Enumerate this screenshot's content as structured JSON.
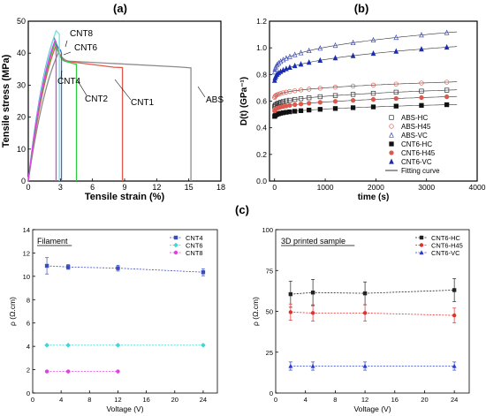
{
  "panel_labels": {
    "a": "(a)",
    "b": "(b)",
    "c": "(c)"
  },
  "chart_data": [
    {
      "id": "a",
      "type": "line",
      "xlabel": "Tensile strain (%)",
      "ylabel": "Tensile stress (MPa)",
      "xlim": [
        0,
        18
      ],
      "ylim": [
        0,
        50
      ],
      "xticks": [
        0,
        3,
        6,
        9,
        12,
        15,
        18
      ],
      "yticks": [
        0,
        10,
        20,
        30,
        40,
        50
      ],
      "series": [
        {
          "name": "ABS",
          "color": "#8c8c8c",
          "peak": [
            2.8,
            40
          ],
          "plateau": [
            3.8,
            37.5
          ],
          "plateau_end": [
            14,
            35.7
          ],
          "end": [
            15.2,
            35.4
          ],
          "drop": true
        },
        {
          "name": "CNT1",
          "color": "#e0584c",
          "peak": [
            2.6,
            42.5
          ],
          "plateau": [
            3.5,
            37.5
          ],
          "plateau_end": [
            8,
            35.6
          ],
          "end": [
            8.8,
            35.5
          ],
          "drop": true
        },
        {
          "name": "CNT2",
          "color": "#2ecc40",
          "peak": [
            2.5,
            43
          ],
          "plateau": [
            3.4,
            37.5
          ],
          "end": [
            4.5,
            36.5
          ],
          "drop": true
        },
        {
          "name": "CNT4",
          "color": "#2a6fdb",
          "peak": [
            2.4,
            45
          ],
          "plateau": [
            3.0,
            41
          ],
          "end": [
            3.1,
            40
          ],
          "drop": true
        },
        {
          "name": "CNT6",
          "color": "#7be0e0",
          "peak": [
            2.6,
            47
          ],
          "end": [
            2.9,
            46
          ],
          "drop": true
        },
        {
          "name": "CNT8",
          "color": "#e040e0",
          "peak": [
            2.5,
            44
          ],
          "end": [
            2.6,
            43.5
          ],
          "drop": true
        }
      ],
      "annotations": [
        "CNT8",
        "CNT6",
        "CNT4",
        "CNT2",
        "CNT1",
        "ABS"
      ]
    },
    {
      "id": "b",
      "type": "scatter",
      "xlabel": "time (s)",
      "ylabel": "D(t) (GPa⁻¹)",
      "xlim": [
        -100,
        4000
      ],
      "ylim": [
        0,
        1.2
      ],
      "xticks": [
        0,
        1000,
        2000,
        3000,
        4000
      ],
      "yticks": [
        0.0,
        0.2,
        0.4,
        0.6,
        0.8,
        1.0,
        1.2
      ],
      "legend": "bottom-right",
      "series": [
        {
          "name": "ABS-HC",
          "color": "#333333",
          "marker": "open-square",
          "d0": 0.55,
          "d_end": 0.685
        },
        {
          "name": "ABS-H45",
          "color": "#e0584c",
          "marker": "open-circle",
          "d0": 0.62,
          "d_end": 0.745
        },
        {
          "name": "ABS-VC",
          "color": "#3a4cc0",
          "marker": "open-triangle",
          "d0": 0.8,
          "d_end": 1.12
        },
        {
          "name": "CNT6-HC",
          "color": "#111111",
          "marker": "filled-square",
          "d0": 0.48,
          "d_end": 0.575
        },
        {
          "name": "CNT6-H45",
          "color": "#e0584c",
          "marker": "filled-circle",
          "d0": 0.52,
          "d_end": 0.635
        },
        {
          "name": "CNT6-VC",
          "color": "#1a2cb0",
          "marker": "filled-triangle",
          "d0": 0.74,
          "d_end": 1.01
        },
        {
          "name": "Fitting curve",
          "color": "#333333",
          "marker": "line"
        }
      ]
    },
    {
      "id": "c1",
      "type": "line",
      "title": "Filament",
      "xlabel": "Voltage (V)",
      "ylabel": "ρ (Ω.cm)",
      "xlim": [
        0,
        26
      ],
      "ylim": [
        0,
        14
      ],
      "xticks": [
        0,
        4,
        8,
        12,
        16,
        20,
        24
      ],
      "yticks": [
        0,
        2,
        4,
        6,
        8,
        10,
        12,
        14
      ],
      "legend": "top-right",
      "series": [
        {
          "name": "CNT4",
          "color": "#3a4cc0",
          "marker": "square",
          "x": [
            2,
            5,
            12,
            24
          ],
          "y": [
            10.9,
            10.8,
            10.7,
            10.35
          ],
          "err": [
            0.7,
            0.2,
            0.25,
            0.3
          ]
        },
        {
          "name": "CNT6",
          "color": "#3fd8d8",
          "marker": "diamond",
          "x": [
            2,
            5,
            12,
            24
          ],
          "y": [
            4.1,
            4.1,
            4.1,
            4.1
          ],
          "err": [
            0.05,
            0.05,
            0.05,
            0.05
          ]
        },
        {
          "name": "CNT8",
          "color": "#e040e0",
          "marker": "circle",
          "x": [
            2,
            5,
            12
          ],
          "y": [
            1.85,
            1.85,
            1.85
          ],
          "err": [
            0.05,
            0.05,
            0.05
          ]
        }
      ]
    },
    {
      "id": "c2",
      "type": "line",
      "title": "3D printed sample",
      "xlabel": "Voltage (V)",
      "ylabel": "ρ (Ω.cm)",
      "xlim": [
        0,
        26
      ],
      "ylim": [
        0,
        100
      ],
      "xticks": [
        0,
        4,
        8,
        12,
        16,
        20,
        24
      ],
      "yticks": [
        0,
        25,
        50,
        75,
        100
      ],
      "legend": "top-right",
      "series": [
        {
          "name": "CNT6-HC",
          "color": "#222222",
          "marker": "square",
          "x": [
            2,
            5,
            12,
            24
          ],
          "y": [
            60.5,
            61.5,
            61,
            63
          ],
          "err": [
            8,
            8,
            7,
            7
          ]
        },
        {
          "name": "CNT6-H45",
          "color": "#e03030",
          "marker": "circle",
          "x": [
            2,
            5,
            12,
            24
          ],
          "y": [
            49.5,
            49,
            49,
            47.5
          ],
          "err": [
            5,
            5,
            5,
            4.5
          ]
        },
        {
          "name": "CNT6-VC",
          "color": "#2a3cd0",
          "marker": "triangle",
          "x": [
            2,
            5,
            12,
            24
          ],
          "y": [
            16.5,
            16.5,
            16.5,
            16.5
          ],
          "err": [
            2.5,
            2.5,
            2.5,
            2.5
          ]
        }
      ]
    }
  ]
}
